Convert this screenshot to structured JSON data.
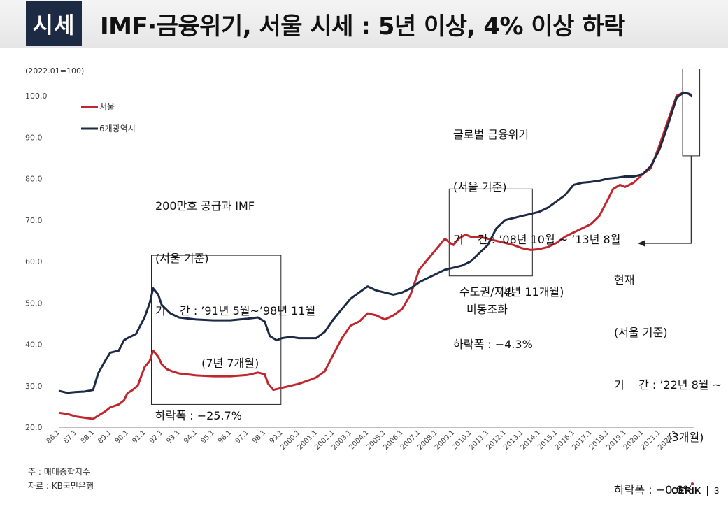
{
  "header": {
    "badge": "시세",
    "title": "IMF·금융위기, 서울 시세 : 5년 이상, 4% 이상 하락"
  },
  "chart_data": {
    "type": "line",
    "unit_note": "(2022.01=100)",
    "ylim": [
      20,
      100
    ],
    "y_ticks": [
      "20.0",
      "30.0",
      "40.0",
      "50.0",
      "60.0",
      "70.0",
      "80.0",
      "90.0",
      "100.0"
    ],
    "x_range": [
      1986.0,
      2023.0
    ],
    "x_ticks": [
      "86.1",
      "87.1",
      "88.1",
      "89.1",
      "90.1",
      "91.1",
      "92.1",
      "93.1",
      "94.1",
      "95.1",
      "96.1",
      "97.1",
      "98.1",
      "99.1",
      "2000.1",
      "2001.1",
      "2002.1",
      "2003.1",
      "2004.1",
      "2005.1",
      "2006.1",
      "2007.1",
      "2008.1",
      "2009.1",
      "2010.1",
      "2011.1",
      "2012.1",
      "2013.1",
      "2014.1",
      "2015.1",
      "2016.1",
      "2017.1",
      "2018.1",
      "2019.1",
      "2020.1",
      "2021.1",
      "2022.1"
    ],
    "series": [
      {
        "name": "서울",
        "color": "#c0262d",
        "points": [
          [
            1986.0,
            23.5
          ],
          [
            1986.5,
            23.2
          ],
          [
            1987.0,
            22.6
          ],
          [
            1987.5,
            22.3
          ],
          [
            1988.0,
            22.0
          ],
          [
            1988.3,
            22.8
          ],
          [
            1988.7,
            23.8
          ],
          [
            1989.0,
            24.8
          ],
          [
            1989.5,
            25.5
          ],
          [
            1989.8,
            26.5
          ],
          [
            1990.0,
            28.2
          ],
          [
            1990.3,
            29.0
          ],
          [
            1990.6,
            30.0
          ],
          [
            1991.0,
            34.5
          ],
          [
            1991.3,
            36.0
          ],
          [
            1991.5,
            38.5
          ],
          [
            1991.8,
            37.0
          ],
          [
            1992.0,
            35.2
          ],
          [
            1992.3,
            34.0
          ],
          [
            1992.6,
            33.5
          ],
          [
            1993.0,
            33.0
          ],
          [
            1994.0,
            32.5
          ],
          [
            1995.0,
            32.3
          ],
          [
            1996.0,
            32.3
          ],
          [
            1997.0,
            32.6
          ],
          [
            1997.6,
            33.2
          ],
          [
            1998.0,
            32.8
          ],
          [
            1998.2,
            30.5
          ],
          [
            1998.5,
            29.0
          ],
          [
            1999.0,
            29.5
          ],
          [
            1999.5,
            30.0
          ],
          [
            2000.0,
            30.5
          ],
          [
            2000.5,
            31.2
          ],
          [
            2001.0,
            32.0
          ],
          [
            2001.5,
            33.5
          ],
          [
            2002.0,
            37.5
          ],
          [
            2002.5,
            41.5
          ],
          [
            2003.0,
            44.5
          ],
          [
            2003.5,
            45.5
          ],
          [
            2004.0,
            47.5
          ],
          [
            2004.5,
            47.0
          ],
          [
            2005.0,
            46.0
          ],
          [
            2005.5,
            47.0
          ],
          [
            2006.0,
            48.5
          ],
          [
            2006.5,
            52.0
          ],
          [
            2007.0,
            58.0
          ],
          [
            2007.5,
            60.5
          ],
          [
            2008.0,
            63.0
          ],
          [
            2008.5,
            65.5
          ],
          [
            2008.8,
            64.5
          ],
          [
            2009.0,
            64.0
          ],
          [
            2009.3,
            65.5
          ],
          [
            2009.7,
            66.5
          ],
          [
            2010.0,
            66.0
          ],
          [
            2010.5,
            66.0
          ],
          [
            2011.0,
            65.5
          ],
          [
            2011.5,
            65.0
          ],
          [
            2012.0,
            64.5
          ],
          [
            2012.5,
            64.0
          ],
          [
            2013.0,
            63.2
          ],
          [
            2013.5,
            62.8
          ],
          [
            2014.0,
            63.0
          ],
          [
            2014.5,
            63.5
          ],
          [
            2015.0,
            64.5
          ],
          [
            2015.5,
            66.0
          ],
          [
            2016.0,
            67.0
          ],
          [
            2016.5,
            68.0
          ],
          [
            2017.0,
            69.0
          ],
          [
            2017.5,
            71.0
          ],
          [
            2018.0,
            75.0
          ],
          [
            2018.3,
            77.5
          ],
          [
            2018.7,
            78.5
          ],
          [
            2019.0,
            78.0
          ],
          [
            2019.5,
            79.0
          ],
          [
            2020.0,
            81.0
          ],
          [
            2020.5,
            82.5
          ],
          [
            2021.0,
            88.0
          ],
          [
            2021.5,
            94.0
          ],
          [
            2022.0,
            100.0
          ],
          [
            2022.4,
            100.8
          ],
          [
            2022.7,
            100.5
          ],
          [
            2022.9,
            100.2
          ]
        ]
      },
      {
        "name": "6개광역시",
        "color": "#1c2a44",
        "points": [
          [
            1986.0,
            28.8
          ],
          [
            1986.5,
            28.3
          ],
          [
            1987.0,
            28.5
          ],
          [
            1987.5,
            28.6
          ],
          [
            1988.0,
            29.0
          ],
          [
            1988.3,
            33.0
          ],
          [
            1988.7,
            36.0
          ],
          [
            1989.0,
            38.0
          ],
          [
            1989.5,
            38.5
          ],
          [
            1989.8,
            41.0
          ],
          [
            1990.0,
            41.5
          ],
          [
            1990.5,
            42.5
          ],
          [
            1991.0,
            46.5
          ],
          [
            1991.3,
            50.0
          ],
          [
            1991.5,
            53.5
          ],
          [
            1991.8,
            52.0
          ],
          [
            1992.0,
            49.5
          ],
          [
            1992.5,
            47.5
          ],
          [
            1993.0,
            46.5
          ],
          [
            1994.0,
            46.0
          ],
          [
            1995.0,
            45.8
          ],
          [
            1996.0,
            45.8
          ],
          [
            1997.0,
            46.2
          ],
          [
            1997.6,
            46.5
          ],
          [
            1998.0,
            45.5
          ],
          [
            1998.3,
            42.0
          ],
          [
            1998.7,
            41.0
          ],
          [
            1999.0,
            41.5
          ],
          [
            1999.5,
            41.8
          ],
          [
            2000.0,
            41.5
          ],
          [
            2001.0,
            41.5
          ],
          [
            2001.5,
            43.0
          ],
          [
            2002.0,
            46.0
          ],
          [
            2002.5,
            48.5
          ],
          [
            2003.0,
            51.0
          ],
          [
            2003.5,
            52.5
          ],
          [
            2004.0,
            54.0
          ],
          [
            2004.5,
            53.0
          ],
          [
            2005.0,
            52.5
          ],
          [
            2005.5,
            52.0
          ],
          [
            2006.0,
            52.5
          ],
          [
            2006.5,
            53.5
          ],
          [
            2007.0,
            55.0
          ],
          [
            2007.5,
            56.0
          ],
          [
            2008.0,
            57.0
          ],
          [
            2008.5,
            58.0
          ],
          [
            2009.0,
            58.5
          ],
          [
            2009.5,
            59.0
          ],
          [
            2010.0,
            60.0
          ],
          [
            2010.5,
            62.0
          ],
          [
            2011.0,
            64.0
          ],
          [
            2011.5,
            68.0
          ],
          [
            2012.0,
            70.0
          ],
          [
            2012.5,
            70.5
          ],
          [
            2013.0,
            71.0
          ],
          [
            2013.5,
            71.5
          ],
          [
            2014.0,
            72.0
          ],
          [
            2014.5,
            73.0
          ],
          [
            2015.0,
            74.5
          ],
          [
            2015.5,
            76.0
          ],
          [
            2016.0,
            78.5
          ],
          [
            2016.5,
            79.0
          ],
          [
            2017.0,
            79.2
          ],
          [
            2017.5,
            79.5
          ],
          [
            2018.0,
            80.0
          ],
          [
            2018.5,
            80.2
          ],
          [
            2019.0,
            80.5
          ],
          [
            2019.5,
            80.5
          ],
          [
            2020.0,
            81.0
          ],
          [
            2020.5,
            83.0
          ],
          [
            2021.0,
            87.0
          ],
          [
            2021.5,
            93.0
          ],
          [
            2022.0,
            99.5
          ],
          [
            2022.4,
            100.8
          ],
          [
            2022.7,
            100.5
          ],
          [
            2022.9,
            99.8
          ]
        ]
      }
    ]
  },
  "annotations": {
    "imf": {
      "lines": [
        "200만호 공급과 IMF",
        "(서울 기준)",
        "기    간 : ’91년 5월~’98년 11월",
        "             (7년 7개월)",
        "하락폭 : −25.7%"
      ],
      "range": [
        1991.4,
        1998.95
      ],
      "yrange": [
        25.5,
        61.5
      ]
    },
    "gfc": {
      "lines": [
        "글로벌 금융위기",
        "(서울 기준)",
        "기    간 : ’08년 10월 ~ ’13년 8월",
        "             (4년 11개월)",
        "하락폭 : −4.3%"
      ],
      "range": [
        2008.75,
        2013.6
      ],
      "yrange": [
        56.5,
        77.5
      ]
    },
    "decouple": [
      "수도권/지방",
      "비동조화"
    ],
    "current": {
      "lines": [
        "현재",
        "(서울 기준)",
        "기    간 : ’22년 8월 ~",
        "               (3개월)",
        "하락폭 : −0.6%"
      ],
      "range": [
        2022.35,
        2023.35
      ],
      "yrange": [
        85.5,
        106.5
      ]
    }
  },
  "footer": {
    "note": "주 : 매매종합지수",
    "source": "자료 : KB국민은행",
    "logo": "CERIK",
    "page": "3"
  }
}
